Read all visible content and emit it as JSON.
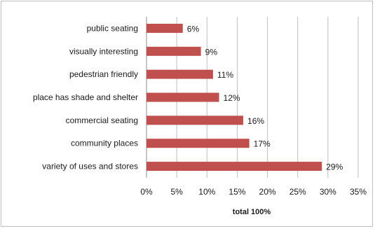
{
  "chart_data": {
    "type": "bar",
    "orientation": "horizontal",
    "categories": [
      "public seating",
      "visually interesting",
      "pedestrian friendly",
      "place has shade and shelter",
      "commercial seating",
      "community places",
      "variety of uses and stores"
    ],
    "values": [
      6,
      9,
      11,
      12,
      16,
      17,
      29
    ],
    "value_labels": [
      "6%",
      "9%",
      "11%",
      "12%",
      "16%",
      "17%",
      "29%"
    ],
    "xlabel": "total 100%",
    "xlim": [
      0,
      35
    ],
    "xticks": [
      "0%",
      "5%",
      "10%",
      "15%",
      "20%",
      "25%",
      "30%",
      "35%"
    ],
    "bar_color": "#c0504d",
    "grid": "vertical gridlines on"
  }
}
